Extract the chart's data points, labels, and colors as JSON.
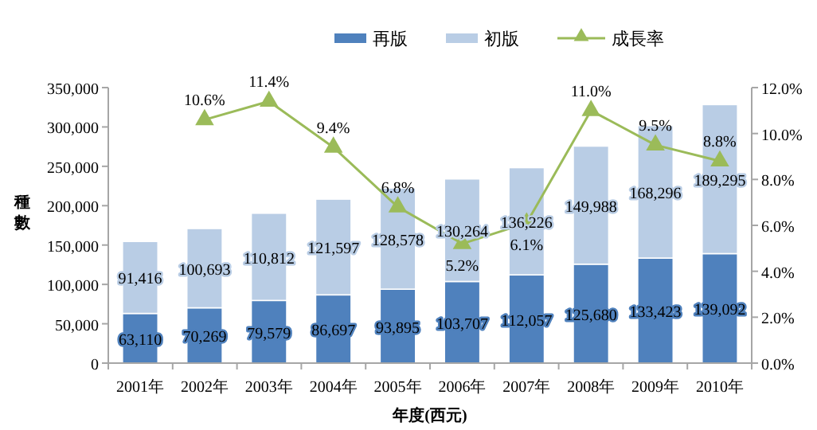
{
  "chart_data": {
    "type": "bar",
    "stacked": true,
    "xlabel": "年度(西元)",
    "ylabel": "種數",
    "categories": [
      "2001年",
      "2002年",
      "2003年",
      "2004年",
      "2005年",
      "2006年",
      "2007年",
      "2008年",
      "2009年",
      "2010年"
    ],
    "series": [
      {
        "name": "再版",
        "color": "#4f81bd",
        "values": [
          63110,
          70269,
          79579,
          86697,
          93895,
          103707,
          112057,
          125680,
          133423,
          139092
        ],
        "value_labels": [
          "63,110",
          "70,269",
          "79,579",
          "86,697",
          "93,895",
          "103,707",
          "112,057",
          "125,680",
          "133,423",
          "139,092"
        ]
      },
      {
        "name": "初版",
        "color": "#b9cde5",
        "values": [
          91416,
          100693,
          110812,
          121597,
          128578,
          130264,
          136226,
          149988,
          168296,
          189295
        ],
        "value_labels": [
          "91,416",
          "100,693",
          "110,812",
          "121,597",
          "128,578",
          "130,264",
          "136,226",
          "149,988",
          "168,296",
          "189,295"
        ]
      },
      {
        "name": "成長率",
        "type": "line",
        "axis": "y2",
        "color": "#9bbb59",
        "marker": "triangle",
        "values": [
          null,
          10.6,
          11.4,
          9.4,
          6.8,
          5.2,
          6.1,
          11.0,
          9.5,
          8.8
        ],
        "value_labels": [
          null,
          "10.6%",
          "11.4%",
          "9.4%",
          "6.8%",
          "5.2%",
          "6.1%",
          "11.0%",
          "9.5%",
          "8.8%"
        ]
      }
    ],
    "legend": "top",
    "ylim": [
      0,
      350000
    ],
    "yticks": [
      {
        "value": 0,
        "label": "0"
      },
      {
        "value": 50000,
        "label": "50,000"
      },
      {
        "value": 100000,
        "label": "100,000"
      },
      {
        "value": 150000,
        "label": "150,000"
      },
      {
        "value": 200000,
        "label": "200,000"
      },
      {
        "value": 250000,
        "label": "250,000"
      },
      {
        "value": 300000,
        "label": "300,000"
      },
      {
        "value": 350000,
        "label": "350,000"
      }
    ],
    "y2lim": [
      0,
      12
    ],
    "y2ticks": [
      {
        "value": 0,
        "label": "0.0%"
      },
      {
        "value": 2,
        "label": "2.0%"
      },
      {
        "value": 4,
        "label": "4.0%"
      },
      {
        "value": 6,
        "label": "6.0%"
      },
      {
        "value": 8,
        "label": "8.0%"
      },
      {
        "value": 10,
        "label": "10.0%"
      },
      {
        "value": 12,
        "label": "12.0%"
      }
    ]
  }
}
